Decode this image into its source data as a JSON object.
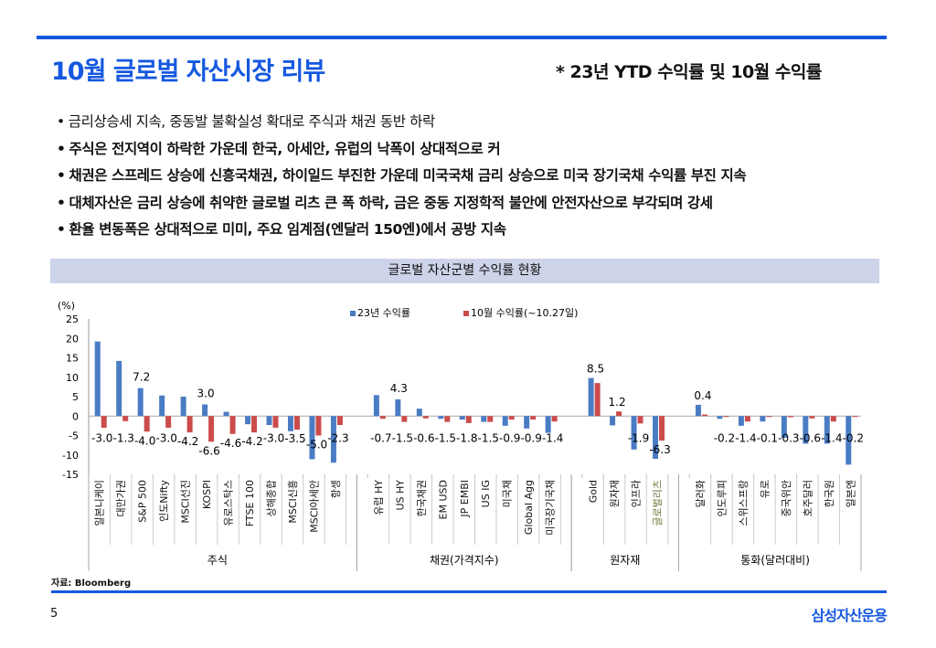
{
  "header": {
    "title": "10월 글로벌 자산시장 리뷰",
    "subtitle": "* 23년 YTD 수익률 및 10월 수익률"
  },
  "bullets": [
    "금리상승세 지속, 중동발 불확실성 확대로 주식과 채권 동반 하락",
    "주식은 전지역이 하락한 가운데 한국, 아세안, 유럽의 낙폭이 상대적으로 커",
    "채권은 스프레드 상승에 신흥국채권, 하이일드 부진한 가운데 미국국채 금리 상승으로 미국 장기국채 수익률 부진 지속",
    "대체자산은 금리 상승에 취약한 글로벌 리츠 큰 폭 하락, 금은 중동 지정학적 불안에 안전자산으로 부각되며 강세",
    "환율 변동폭은 상대적으로 미미, 주요 임계점(엔달러 150엔)에서 공방 지속"
  ],
  "chart_data": {
    "type": "bar",
    "title": "글로벌 자산군별 수익률 현황",
    "ylabel": "(%)",
    "ylim": [
      -15,
      25
    ],
    "yticks": [
      25,
      20,
      15,
      10,
      5,
      0,
      -5,
      -10,
      -15
    ],
    "legend_position": "top-center",
    "colors": {
      "ytd": "#4a7cc4",
      "oct": "#cc4b4b"
    },
    "groups": [
      {
        "name": "주식",
        "categories": [
          "일본니케이",
          "대만가권",
          "S&P 500",
          "인도Nifty",
          "MSCI선진",
          "KOSPI",
          "유로스탁스",
          "FTSE 100",
          "상해종합",
          "MSCI신흥",
          "MSCI아세안",
          "항셍"
        ]
      },
      {
        "name": "채권(가격지수)",
        "categories": [
          "유럽 HY",
          "US HY",
          "한국채권",
          "EM USD",
          "JP EMBI",
          "US IG",
          "미국채",
          "Global Agg",
          "미국장기국채"
        ]
      },
      {
        "name": "원자재",
        "categories": [
          "Gold",
          "원자재",
          "인프라",
          "글로벌리츠"
        ]
      },
      {
        "name": "통화(달러대비)",
        "categories": [
          "달러화",
          "인도루피",
          "스위스프랑",
          "유로",
          "중국위안",
          "호주달러",
          "한국원",
          "일본엔"
        ]
      }
    ],
    "series": [
      {
        "name": "23년 수익률",
        "key": "ytd",
        "values": [
          19.2,
          14.2,
          7.2,
          5.3,
          5.0,
          3.0,
          1.1,
          -2.1,
          -2.3,
          -3.9,
          -11.1,
          -12.0,
          5.4,
          4.3,
          1.9,
          -0.7,
          -0.9,
          -1.5,
          -2.5,
          -3.2,
          -4.3,
          9.8,
          -2.4,
          -8.6,
          -11.0,
          2.9,
          -0.7,
          -2.5,
          -1.4,
          -5.6,
          -7.1,
          -7.1,
          -12.5
        ]
      },
      {
        "name": "10월 수익률(~10.27일)",
        "key": "oct",
        "values": [
          -3.0,
          -1.3,
          -4.0,
          -3.0,
          -4.2,
          -6.6,
          -4.6,
          -4.2,
          -3.0,
          -3.5,
          -5.0,
          -2.3,
          -0.7,
          -1.5,
          -0.6,
          -1.5,
          -1.8,
          -1.5,
          -0.9,
          -0.9,
          -1.4,
          8.5,
          1.2,
          -1.9,
          -6.3,
          0.4,
          -0.2,
          -1.4,
          -0.1,
          -0.3,
          -0.6,
          -1.4,
          -0.2
        ]
      }
    ],
    "ytd_data_labels": {
      "S&P 500": "7.2",
      "KOSPI": "3.0",
      "US HY": "4.3"
    }
  },
  "footer": {
    "source": "자료: Bloomberg",
    "page": "5",
    "logo": "삼성자산운용"
  }
}
